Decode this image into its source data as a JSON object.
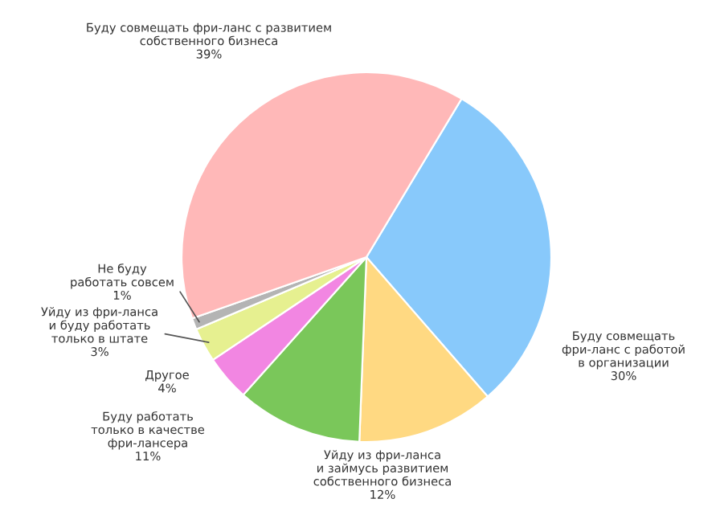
{
  "chart_data": {
    "type": "pie",
    "categories": [
      "Буду совмещать\nфри-ланс с работой\nв организации",
      "Уйду из фри-ланса\nи займусь развитием\nсобственного бизнеса",
      "Буду работать\nтолько в качестве\nфри-лансера",
      "Другое",
      "Уйду из фри-ланса\nи буду работать\nтолько в штате",
      "Не буду\nработать совсем",
      "Буду совмещать фри-ланс с развитием\nсобственного бизнеса"
    ],
    "values": [
      30,
      12,
      11,
      4,
      3,
      1,
      39
    ],
    "colors": [
      "#88c9fb",
      "#ffd982",
      "#7ac75a",
      "#f286e2",
      "#e6f090",
      "#b4b4b4",
      "#ffb8b8"
    ],
    "value_labels": [
      "30%",
      "12%",
      "11%",
      "4%",
      "3%",
      "1%",
      "39%"
    ]
  }
}
